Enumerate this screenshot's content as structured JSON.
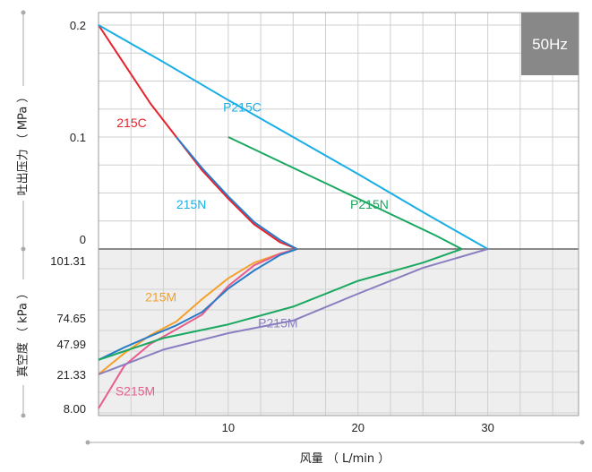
{
  "chart_data": {
    "type": "line",
    "badge": "50Hz",
    "xlabel": "风量 （ L/min ）",
    "ylabel_top": "吐出压力 （ MPa ）",
    "ylabel_bottom": "真空度 （ kPa ）",
    "x_ticks": [
      "10",
      "20",
      "30"
    ],
    "x_tick_values": [
      10,
      20,
      30
    ],
    "xlim": [
      0,
      37
    ],
    "pressure_ticks": [
      "0.2",
      "0.1",
      "0"
    ],
    "pressure_tick_values": [
      0.2,
      0.1,
      0
    ],
    "pressure_ylim": [
      0,
      0.2
    ],
    "vacuum_ticks": [
      "101.31",
      "74.65",
      "47.99",
      "21.33",
      "8.00"
    ],
    "vacuum_tick_values": [
      101.31,
      74.65,
      47.99,
      21.33,
      8.0
    ],
    "pressure_series": [
      {
        "name": "215C",
        "color": "#e8212a",
        "points": [
          [
            0,
            0.2
          ],
          [
            2,
            0.165
          ],
          [
            4,
            0.13
          ],
          [
            6,
            0.1
          ],
          [
            8,
            0.07
          ],
          [
            10,
            0.045
          ],
          [
            12,
            0.022
          ],
          [
            14,
            0.006
          ],
          [
            15.3,
            0
          ]
        ]
      },
      {
        "name": "215N",
        "color": "#2a7cc7",
        "points": [
          [
            6,
            0.1
          ],
          [
            8,
            0.072
          ],
          [
            10,
            0.047
          ],
          [
            12,
            0.024
          ],
          [
            14,
            0.008
          ],
          [
            15.3,
            0
          ]
        ]
      },
      {
        "name": "P215C",
        "color": "#19aee6",
        "points": [
          [
            0,
            0.2
          ],
          [
            5,
            0.167
          ],
          [
            10,
            0.133
          ],
          [
            15,
            0.1
          ],
          [
            20,
            0.067
          ],
          [
            25,
            0.033
          ],
          [
            30,
            0
          ]
        ]
      },
      {
        "name": "P215N",
        "color": "#1aa760",
        "points": [
          [
            10,
            0.1
          ],
          [
            14,
            0.078
          ],
          [
            18,
            0.056
          ],
          [
            22,
            0.034
          ],
          [
            26,
            0.012
          ],
          [
            28,
            0
          ]
        ]
      }
    ],
    "vacuum_series": [
      {
        "name": "215M",
        "color": "#f5a02a",
        "points": [
          [
            0,
            21.33
          ],
          [
            2,
            40
          ],
          [
            4,
            57
          ],
          [
            6,
            71
          ],
          [
            8,
            82
          ],
          [
            10,
            90
          ],
          [
            12,
            96
          ],
          [
            14,
            99.5
          ],
          [
            15.3,
            101.31
          ]
        ]
      },
      {
        "name": "S215M",
        "color": "#e85d8e",
        "points": [
          [
            0,
            8.0
          ],
          [
            2,
            29
          ],
          [
            4,
            48
          ],
          [
            6,
            63
          ],
          [
            8,
            76
          ],
          [
            10,
            87
          ],
          [
            12,
            95
          ],
          [
            14,
            99.5
          ],
          [
            15.3,
            101.31
          ]
        ]
      },
      {
        "name": "",
        "color": "#2a7cc7",
        "points": [
          [
            0,
            34
          ],
          [
            2,
            45
          ],
          [
            4,
            56
          ],
          [
            6,
            67
          ],
          [
            8,
            77
          ],
          [
            10,
            86
          ],
          [
            12,
            93
          ],
          [
            14,
            99
          ],
          [
            15.3,
            101.31
          ]
        ]
      },
      {
        "name": "",
        "color": "#1aa760",
        "points": [
          [
            0,
            34
          ],
          [
            5,
            54
          ],
          [
            10,
            68
          ],
          [
            15,
            79
          ],
          [
            20,
            89
          ],
          [
            25,
            96
          ],
          [
            28,
            101.31
          ]
        ]
      },
      {
        "name": "P215M",
        "color": "#8b7ec0",
        "points": [
          [
            0,
            21.33
          ],
          [
            5,
            43
          ],
          [
            10,
            59
          ],
          [
            15,
            72
          ],
          [
            20,
            84
          ],
          [
            25,
            94
          ],
          [
            30,
            101.31
          ]
        ]
      }
    ],
    "labels": [
      {
        "text": "215C",
        "color": "#e8212a",
        "x": 1.4,
        "y_kind": "pressure",
        "y": 0.109
      },
      {
        "text": "P215C",
        "color": "#19aee6",
        "x": 9.6,
        "y_kind": "pressure",
        "y": 0.123
      },
      {
        "text": "215N",
        "color": "#19aee6",
        "x": 6.0,
        "y_kind": "pressure",
        "y": 0.036
      },
      {
        "text": "P215N",
        "color": "#1aa760",
        "x": 19.4,
        "y_kind": "pressure",
        "y": 0.036
      },
      {
        "text": "215M",
        "color": "#f5a02a",
        "x": 3.6,
        "y_kind": "vacuum",
        "y": 81
      },
      {
        "text": "P215M",
        "color": "#8b7ec0",
        "x": 12.3,
        "y_kind": "vacuum",
        "y": 65
      },
      {
        "text": "S215M",
        "color": "#e85d8e",
        "x": 1.3,
        "y_kind": "vacuum",
        "y": 13
      }
    ],
    "grid": true
  }
}
